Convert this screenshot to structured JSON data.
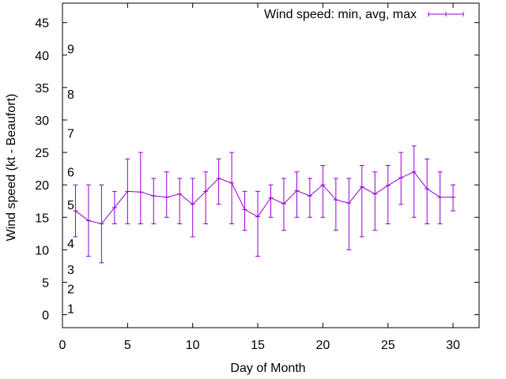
{
  "chart_data": {
    "type": "line",
    "title": "",
    "xlabel": "Day of Month",
    "ylabel": "Wind speed (kt - Beaufort)",
    "xlim": [
      0,
      32
    ],
    "ylim": [
      -2,
      48
    ],
    "x_ticks": [
      0,
      5,
      10,
      15,
      20,
      25,
      30
    ],
    "y_ticks": [
      0,
      5,
      10,
      15,
      20,
      25,
      30,
      35,
      40,
      45
    ],
    "grid": false,
    "legend_position": "top-right",
    "beaufort_labels": [
      {
        "label": "1",
        "y": 1
      },
      {
        "label": "2",
        "y": 4
      },
      {
        "label": "3",
        "y": 7
      },
      {
        "label": "4",
        "y": 11
      },
      {
        "label": "5",
        "y": 17
      },
      {
        "label": "6",
        "y": 22
      },
      {
        "label": "7",
        "y": 28
      },
      {
        "label": "8",
        "y": 34
      },
      {
        "label": "9",
        "y": 41
      }
    ],
    "series": [
      {
        "name": "Wind speed: min, avg, max",
        "color": "#9400d3",
        "x": [
          1,
          2,
          3,
          4,
          5,
          6,
          7,
          8,
          9,
          10,
          11,
          12,
          13,
          14,
          15,
          16,
          17,
          18,
          19,
          20,
          21,
          22,
          23,
          24,
          25,
          26,
          27,
          28,
          29,
          30
        ],
        "avg": [
          16,
          14.5,
          14,
          16.5,
          19,
          18.9,
          18.3,
          18.1,
          18.6,
          17,
          19,
          21,
          20.3,
          16.2,
          15.1,
          18,
          17.1,
          19.1,
          18.3,
          20,
          17.7,
          17.2,
          19.7,
          18.6,
          19.9,
          21.1,
          22,
          19.4,
          18.1,
          18.1
        ],
        "min": [
          12,
          9,
          8,
          14,
          14,
          14,
          14,
          15,
          14,
          12,
          14,
          17,
          14,
          13,
          9,
          15,
          13,
          15,
          15,
          15,
          13,
          10,
          12,
          13,
          14,
          17,
          15,
          14,
          14,
          16
        ],
        "max": [
          20,
          20,
          20,
          19,
          24,
          25,
          21,
          22,
          21,
          21,
          22,
          24,
          25,
          19,
          19,
          20,
          21,
          22,
          21,
          23,
          21,
          21,
          23,
          22,
          23,
          25,
          26,
          24,
          22,
          20
        ]
      }
    ]
  }
}
